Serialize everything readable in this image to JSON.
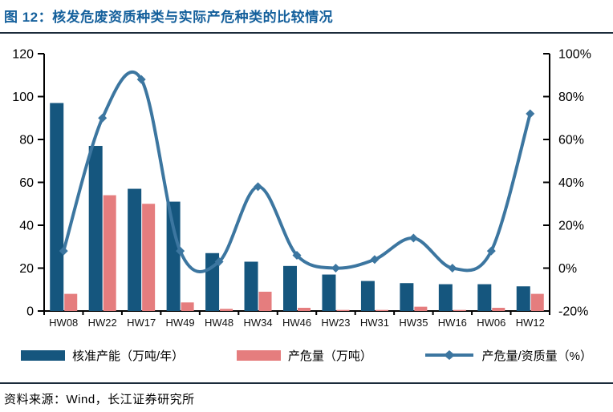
{
  "header": {
    "title": "图 12：核发危废资质种类与实际产危种类的比较情况"
  },
  "footer": {
    "source": "资料来源：Wind，长江证券研究所"
  },
  "colors": {
    "bar_primary": "#15567e",
    "bar_secondary": "#e57d7e",
    "line": "#3c76a0",
    "title": "#15609c",
    "rule": "#1b2b3a",
    "axis": "#000000"
  },
  "chart_data": {
    "type": "bar+line combo",
    "title": "核发危废资质种类与实际产危种类的比较情况",
    "categories": [
      "HW08",
      "HW22",
      "HW17",
      "HW49",
      "HW48",
      "HW34",
      "HW46",
      "HW23",
      "HW31",
      "HW35",
      "HW16",
      "HW06",
      "HW12"
    ],
    "series": [
      {
        "name": "核准产能（万吨/年）",
        "type": "bar",
        "axis": "left",
        "color": "#15567e",
        "values": [
          97,
          77,
          57,
          51,
          27,
          23,
          21,
          17,
          14,
          13,
          12.5,
          12.5,
          11.5
        ]
      },
      {
        "name": "产危量（万吨）",
        "type": "bar",
        "axis": "left",
        "color": "#e57d7e",
        "values": [
          8,
          54,
          50,
          4,
          1,
          9,
          1.5,
          0.5,
          0.5,
          2,
          0.5,
          1.5,
          8
        ]
      },
      {
        "name": "产危量/资质量（%）",
        "type": "line",
        "axis": "right",
        "color": "#3c76a0",
        "marker": "diamond",
        "values": [
          8,
          70,
          88,
          8,
          3,
          38,
          6,
          0,
          4,
          14,
          0,
          8,
          72
        ]
      }
    ],
    "left_axis": {
      "min": 0,
      "max": 120,
      "step": 20,
      "tick_labels": [
        "0",
        "20",
        "40",
        "60",
        "80",
        "100",
        "120"
      ]
    },
    "right_axis": {
      "min": -20,
      "max": 100,
      "step": 20,
      "tick_labels": [
        "-20%",
        "0%",
        "20%",
        "40%",
        "60%",
        "80%",
        "100%"
      ]
    },
    "grid": "off",
    "legend_position": "bottom",
    "smooth_line": true
  }
}
